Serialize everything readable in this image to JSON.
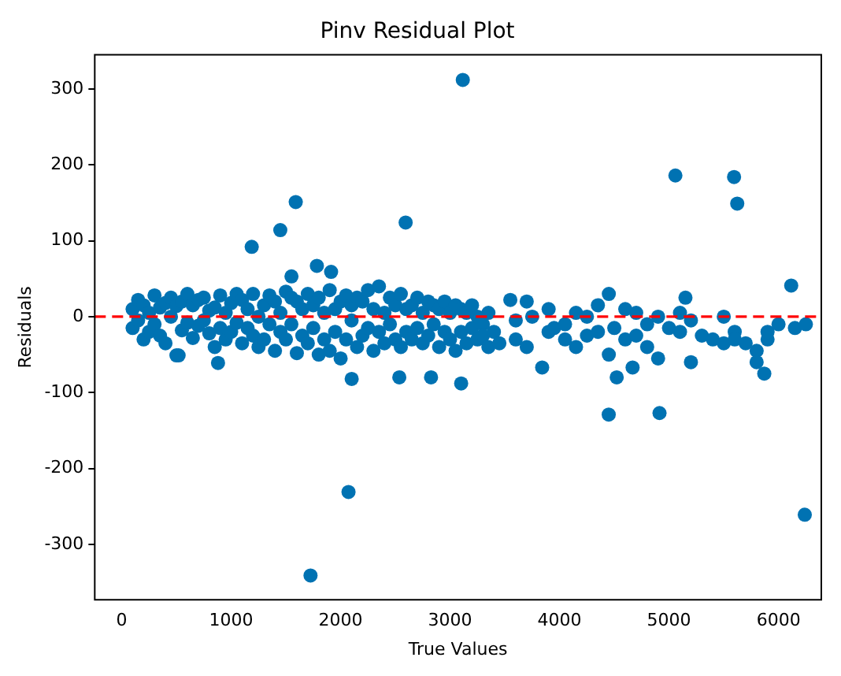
{
  "chart_data": {
    "type": "scatter",
    "title": "Pinv Residual Plot",
    "xlabel": "True Values",
    "ylabel": "Residuals",
    "series": [
      {
        "color": "#0072b2",
        "x": [
          100,
          100,
          150,
          150,
          200,
          200,
          250,
          250,
          300,
          300,
          350,
          350,
          400,
          400,
          450,
          450,
          500,
          500,
          550,
          550,
          600,
          600,
          650,
          650,
          700,
          700,
          750,
          750,
          800,
          800,
          850,
          850,
          880,
          900,
          900,
          950,
          950,
          1000,
          1000,
          1050,
          1050,
          1100,
          1100,
          1150,
          1150,
          1200,
          1200,
          1250,
          1250,
          1300,
          1300,
          1350,
          1350,
          1400,
          1400,
          1450,
          1450,
          1500,
          1500,
          1550,
          1550,
          1600,
          1600,
          1650,
          1650,
          1700,
          1700,
          1750,
          1750,
          1800,
          1800,
          1850,
          1850,
          1900,
          1900,
          1950,
          1950,
          2000,
          2000,
          2050,
          2050,
          2100,
          2100,
          2150,
          2150,
          2200,
          2200,
          2250,
          2250,
          2300,
          2300,
          2350,
          2350,
          2400,
          2400,
          2450,
          2450,
          2500,
          2500,
          2550,
          2550,
          2600,
          2600,
          2650,
          2650,
          2700,
          2700,
          2750,
          2750,
          2800,
          2800,
          2850,
          2850,
          2900,
          2900,
          2950,
          2950,
          3000,
          3000,
          3050,
          3050,
          3100,
          3100,
          3150,
          3150,
          3200,
          3200,
          3250,
          3250,
          3300,
          3300,
          3350,
          3350,
          3400,
          3450,
          3550,
          3600,
          3600,
          3700,
          3700,
          3750,
          3900,
          3900,
          3950,
          4050,
          4050,
          4150,
          4150,
          4250,
          4250,
          4350,
          4350,
          4450,
          4450,
          4500,
          4600,
          4600,
          4700,
          4700,
          4800,
          4800,
          4900,
          4900,
          5000,
          5100,
          5100,
          5150,
          5200,
          5200,
          5300,
          5400,
          5500,
          5500,
          5600,
          5600,
          5700,
          5800,
          5800,
          5900,
          5900,
          6000,
          6150,
          6250,
          3116,
          5058,
          5594,
          5623,
          6116,
          6240,
          1590,
          1449,
          1188,
          2594,
          2072,
          1725,
          1783,
          1913,
          1551,
          4449,
          4913,
          3101,
          3841,
          4522,
          4667,
          5870,
          2101,
          2536,
          2826,
          520
        ],
        "values": [
          10,
          -15,
          22,
          -5,
          -30,
          15,
          5,
          -20,
          28,
          -10,
          -25,
          12,
          18,
          -35,
          0,
          25,
          -51,
          14,
          20,
          -18,
          -8,
          30,
          15,
          -28,
          -12,
          22,
          25,
          -5,
          -22,
          8,
          12,
          -40,
          -61,
          28,
          -15,
          -30,
          5,
          18,
          -20,
          -8,
          30,
          22,
          -35,
          -15,
          10,
          30,
          -25,
          0,
          -40,
          15,
          -30,
          28,
          -10,
          -45,
          20,
          5,
          -20,
          33,
          -30,
          -10,
          25,
          20,
          -48,
          -25,
          10,
          30,
          -35,
          -15,
          15,
          25,
          -50,
          -30,
          5,
          35,
          -45,
          10,
          -20,
          -55,
          20,
          28,
          -30,
          -5,
          15,
          -40,
          25,
          20,
          -25,
          35,
          -15,
          -45,
          10,
          40,
          -20,
          5,
          -35,
          25,
          -10,
          -30,
          15,
          30,
          -40,
          -20,
          10,
          15,
          -30,
          25,
          -15,
          -35,
          5,
          20,
          -25,
          -10,
          15,
          -40,
          10,
          20,
          -20,
          -30,
          5,
          15,
          -45,
          -20,
          10,
          5,
          -35,
          15,
          -15,
          -30,
          0,
          -10,
          -25,
          5,
          -40,
          -20,
          -35,
          22,
          -5,
          -30,
          20,
          -40,
          0,
          10,
          -20,
          -15,
          -30,
          -10,
          5,
          -40,
          -25,
          0,
          -20,
          15,
          30,
          -50,
          -15,
          10,
          -30,
          -25,
          5,
          -10,
          -40,
          0,
          -55,
          -15,
          -20,
          5,
          25,
          -60,
          -5,
          -25,
          -30,
          -35,
          0,
          -20,
          -30,
          -35,
          -45,
          -60,
          -30,
          -20,
          -10,
          -15,
          -10,
          312,
          186,
          184,
          149,
          41,
          -261,
          151,
          114,
          92,
          124,
          -231,
          -341,
          67,
          59,
          53,
          -129,
          -127,
          -88,
          -67,
          -80,
          -67,
          -75,
          -82,
          -80,
          -80,
          -51
        ]
      }
    ],
    "marker": "circle",
    "xlim": [
      -246,
      6391
    ],
    "xticks": [
      0,
      1000,
      2000,
      3000,
      4000,
      5000,
      6000
    ],
    "ylim": [
      -373,
      345
    ],
    "yticks": [
      -300,
      -200,
      -100,
      0,
      100,
      200,
      300
    ],
    "ref_lines": [
      {
        "axis": "y",
        "value": 0,
        "color": "#ff0000",
        "line_style": "dashed"
      }
    ],
    "grid": false,
    "legend": false
  }
}
